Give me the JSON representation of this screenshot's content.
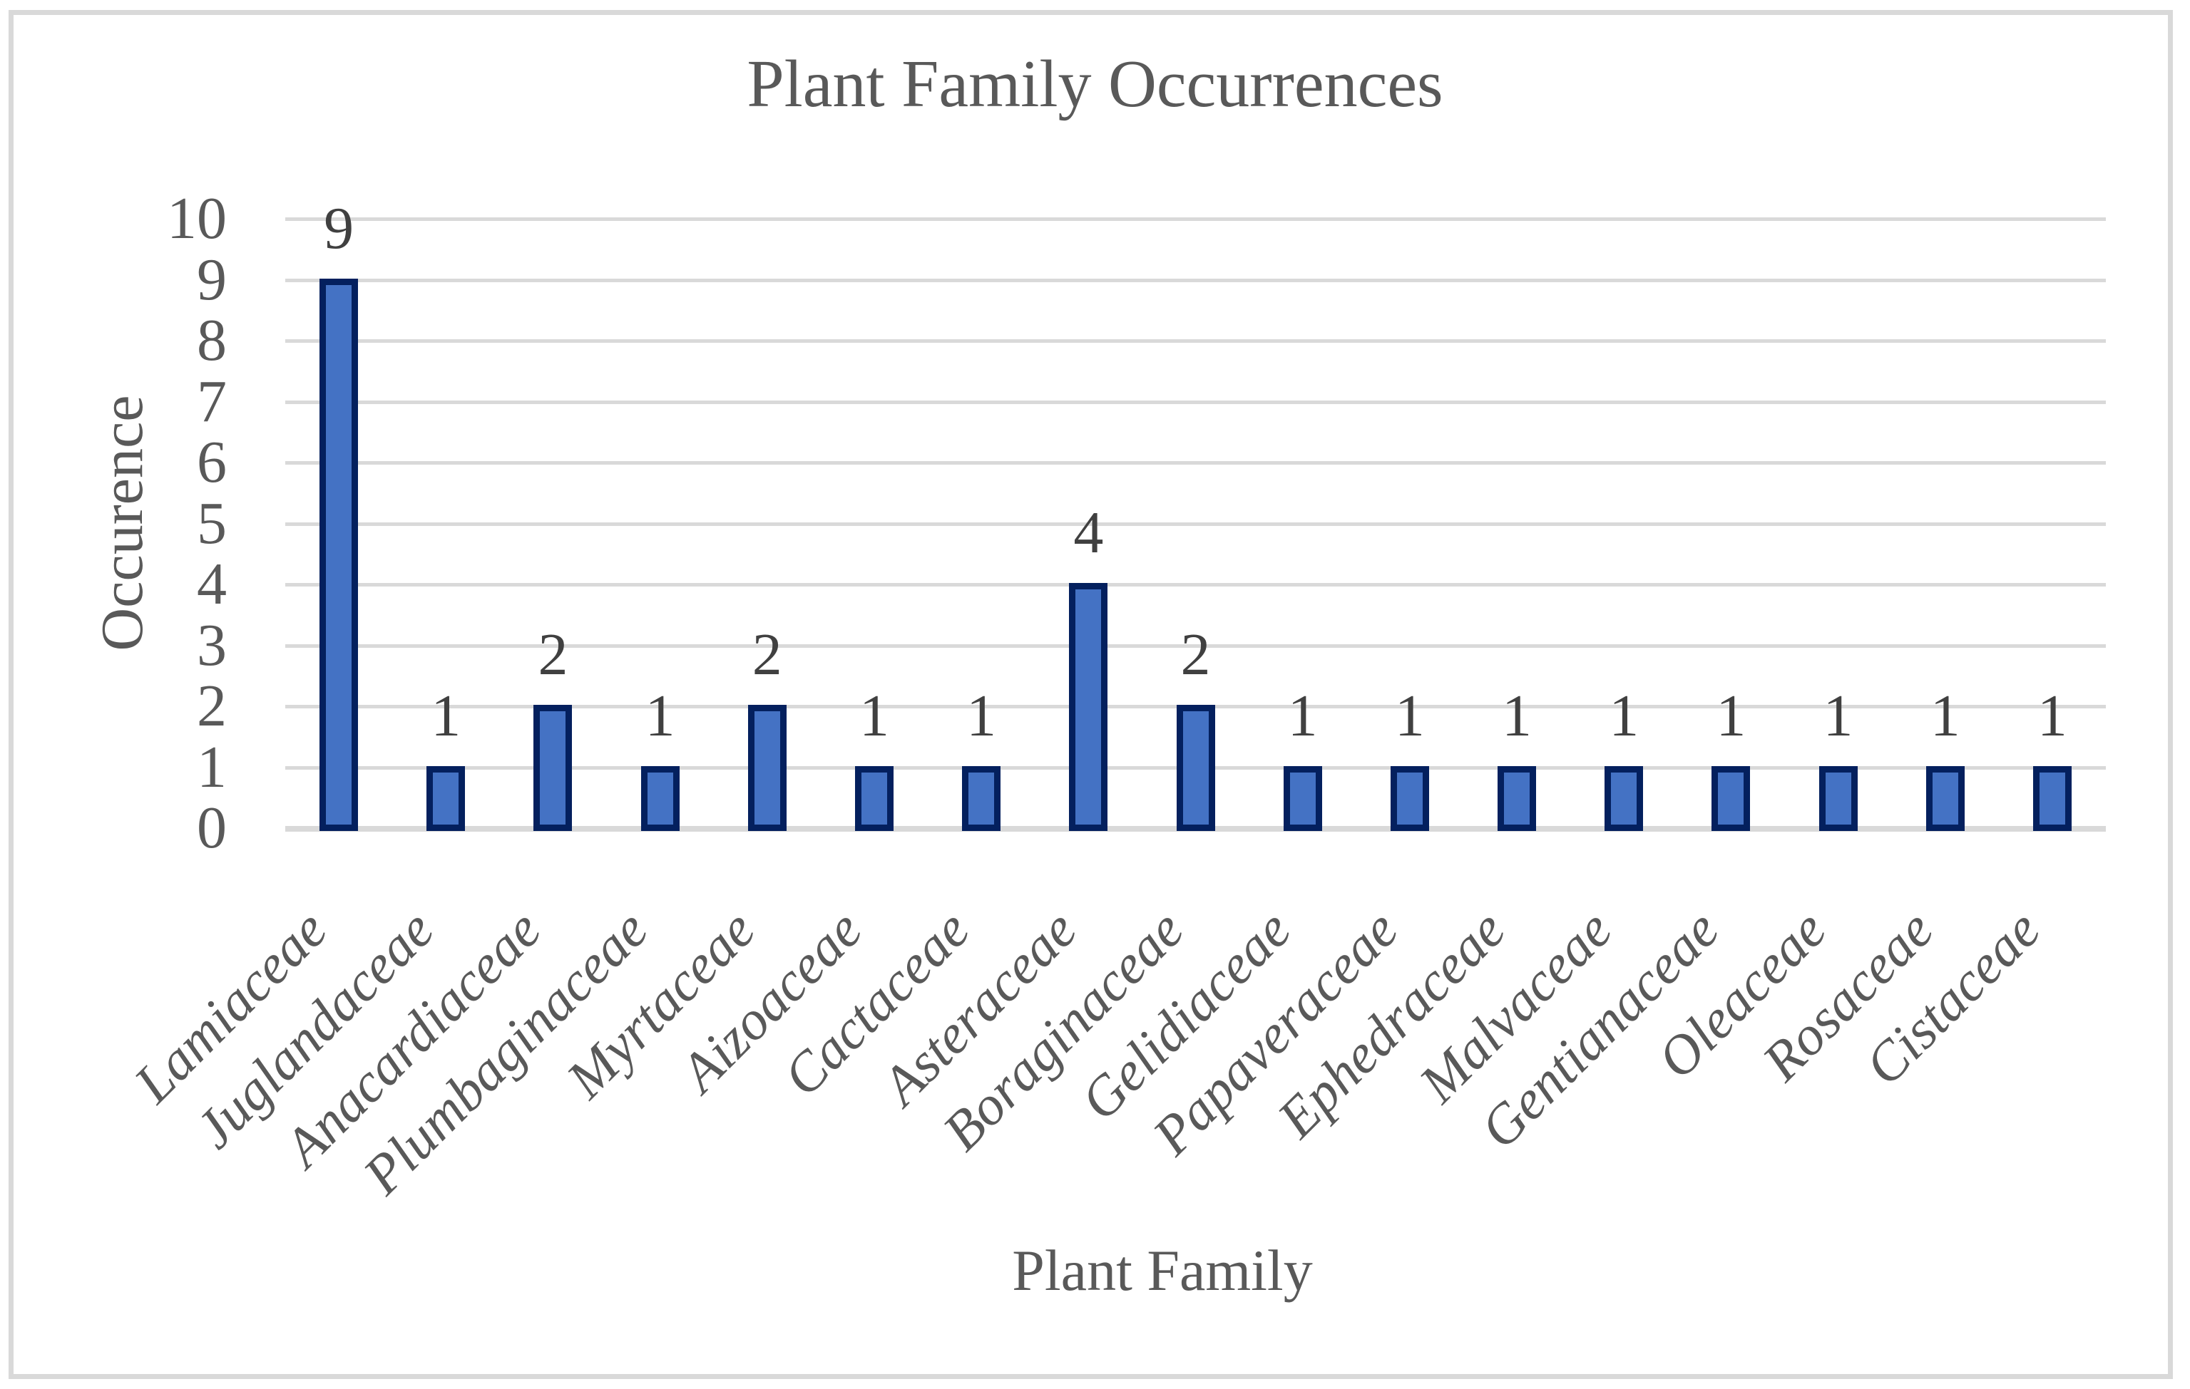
{
  "chart": {
    "title": "Plant Family Occurrences",
    "x_axis_title": "Plant Family",
    "y_axis_title": "Occurence"
  },
  "chart_data": {
    "type": "bar",
    "title": "Plant Family Occurrences",
    "xlabel": "Plant Family",
    "ylabel": "Occurence",
    "categories": [
      "Lamiaceae",
      "Juglandaceae",
      "Anacardiaceae",
      "Plumbaginaceae",
      "Myrtaceae",
      "Aizoaceae",
      "Cactaceae",
      "Asteraceae",
      "Boraginaceae",
      "Gelidiaceae",
      "Papaveraceae",
      "Ephedraceae",
      "Malvaceae",
      "Gentianaceae",
      "Oleaceae",
      "Rosaceae",
      "Cistaceae"
    ],
    "values": [
      9,
      1,
      2,
      1,
      2,
      1,
      1,
      4,
      2,
      1,
      1,
      1,
      1,
      1,
      1,
      1,
      1
    ],
    "yticks": [
      "0",
      "1",
      "2",
      "3",
      "4",
      "5",
      "6",
      "7",
      "8",
      "9",
      "10"
    ],
    "ylim": [
      0,
      10
    ],
    "ytick_interval": 1,
    "grid": "horizontal",
    "legend": "none",
    "show_data_labels": true,
    "colors": {
      "bar_fill": "#4472C4",
      "bar_border": "#04205e",
      "gridline": "#D9D9D9",
      "axis_text": "#595959",
      "data_label_text": "#404040",
      "chart_border": "#D9D9D9",
      "background": "#FFFFFF"
    }
  }
}
